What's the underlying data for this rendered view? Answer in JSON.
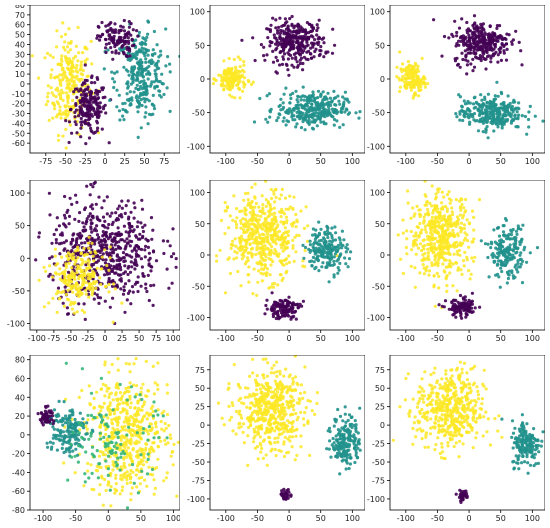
{
  "colors": {
    "purple": "#440154",
    "teal": "#21918c",
    "yellow": "#fde725",
    "green": "#35b779"
  },
  "chart_data": [
    {
      "type": "scatter",
      "row": 0,
      "col": 0,
      "xlim": [
        -95,
        95
      ],
      "ylim": [
        -70,
        80
      ],
      "xticks": [
        -75,
        -50,
        -25,
        0,
        25,
        50,
        75
      ],
      "yticks": [
        -60,
        -50,
        -40,
        -30,
        -20,
        -10,
        0,
        10,
        20,
        30,
        40,
        50,
        60,
        70,
        80
      ],
      "clusters": [
        {
          "color": "yellow",
          "cx": -45,
          "cy": 0,
          "rx": 30,
          "ry": 55,
          "n": 260
        },
        {
          "color": "purple",
          "cx": -20,
          "cy": -25,
          "rx": 25,
          "ry": 30,
          "n": 200
        },
        {
          "color": "teal",
          "cx": 45,
          "cy": 10,
          "rx": 35,
          "ry": 50,
          "n": 300
        },
        {
          "color": "purple",
          "cx": 15,
          "cy": 45,
          "rx": 25,
          "ry": 20,
          "n": 120
        }
      ]
    },
    {
      "type": "scatter",
      "row": 0,
      "col": 1,
      "xlim": [
        -125,
        120
      ],
      "ylim": [
        -110,
        110
      ],
      "xticks": [
        -100,
        -50,
        0,
        50,
        100
      ],
      "yticks": [
        -100,
        -50,
        0,
        50,
        100
      ],
      "clusters": [
        {
          "color": "purple",
          "cx": 10,
          "cy": 55,
          "rx": 50,
          "ry": 35,
          "n": 320
        },
        {
          "color": "yellow",
          "cx": -90,
          "cy": 0,
          "rx": 25,
          "ry": 25,
          "n": 160
        },
        {
          "color": "teal",
          "cx": 35,
          "cy": -45,
          "rx": 60,
          "ry": 28,
          "n": 320
        }
      ]
    },
    {
      "type": "scatter",
      "row": 0,
      "col": 2,
      "xlim": [
        -125,
        120
      ],
      "ylim": [
        -110,
        110
      ],
      "xticks": [
        -100,
        -50,
        0,
        50,
        100
      ],
      "yticks": [
        -100,
        -50,
        0,
        50,
        100
      ],
      "clusters": [
        {
          "color": "purple",
          "cx": 20,
          "cy": 55,
          "rx": 50,
          "ry": 35,
          "n": 300
        },
        {
          "color": "yellow",
          "cx": -90,
          "cy": 0,
          "rx": 22,
          "ry": 25,
          "n": 150
        },
        {
          "color": "teal",
          "cx": 35,
          "cy": -50,
          "rx": 55,
          "ry": 28,
          "n": 300
        }
      ]
    },
    {
      "type": "scatter",
      "row": 1,
      "col": 0,
      "xlim": [
        -110,
        110
      ],
      "ylim": [
        -110,
        120
      ],
      "xticks": [
        -100,
        -75,
        -50,
        -25,
        0,
        25,
        50,
        75,
        100
      ],
      "yticks": [
        -100,
        -50,
        0,
        50,
        100
      ],
      "clusters": [
        {
          "color": "purple",
          "cx": 0,
          "cy": 10,
          "rx": 90,
          "ry": 90,
          "n": 600
        },
        {
          "color": "yellow",
          "cx": -40,
          "cy": -30,
          "rx": 45,
          "ry": 50,
          "n": 240
        }
      ]
    },
    {
      "type": "scatter",
      "row": 1,
      "col": 1,
      "xlim": [
        -125,
        120
      ],
      "ylim": [
        -120,
        120
      ],
      "xticks": [
        -100,
        -50,
        0,
        50,
        100
      ],
      "yticks": [
        -100,
        -50,
        0,
        50,
        100
      ],
      "clusters": [
        {
          "color": "yellow",
          "cx": -40,
          "cy": 30,
          "rx": 60,
          "ry": 75,
          "n": 500
        },
        {
          "color": "teal",
          "cx": 60,
          "cy": 10,
          "rx": 35,
          "ry": 40,
          "n": 200
        },
        {
          "color": "purple",
          "cx": -10,
          "cy": -85,
          "rx": 30,
          "ry": 18,
          "n": 120
        }
      ]
    },
    {
      "type": "scatter",
      "row": 1,
      "col": 2,
      "xlim": [
        -125,
        120
      ],
      "ylim": [
        -120,
        120
      ],
      "xticks": [
        -100,
        -50,
        0,
        50,
        100
      ],
      "yticks": [
        -100,
        -50,
        0,
        50,
        100
      ],
      "clusters": [
        {
          "color": "yellow",
          "cx": -45,
          "cy": 30,
          "rx": 55,
          "ry": 75,
          "n": 480
        },
        {
          "color": "teal",
          "cx": 60,
          "cy": 5,
          "rx": 30,
          "ry": 45,
          "n": 190
        },
        {
          "color": "purple",
          "cx": -10,
          "cy": -85,
          "rx": 28,
          "ry": 16,
          "n": 110
        }
      ]
    },
    {
      "type": "scatter",
      "row": 2,
      "col": 0,
      "xlim": [
        -120,
        110
      ],
      "ylim": [
        -80,
        85
      ],
      "xticks": [
        -100,
        -50,
        0,
        50,
        100
      ],
      "yticks": [
        -80,
        -60,
        -40,
        -20,
        0,
        20,
        40,
        60,
        80
      ],
      "clusters": [
        {
          "color": "yellow",
          "cx": 30,
          "cy": 0,
          "rx": 70,
          "ry": 70,
          "n": 550
        },
        {
          "color": "teal",
          "cx": -65,
          "cy": 5,
          "rx": 35,
          "ry": 30,
          "n": 160
        },
        {
          "color": "green",
          "cx": 10,
          "cy": -10,
          "rx": 70,
          "ry": 60,
          "n": 120
        },
        {
          "color": "purple",
          "cx": -95,
          "cy": 20,
          "rx": 12,
          "ry": 10,
          "n": 50
        }
      ]
    },
    {
      "type": "scatter",
      "row": 2,
      "col": 1,
      "xlim": [
        -125,
        120
      ],
      "ylim": [
        -115,
        95
      ],
      "xticks": [
        -100,
        -50,
        0,
        50,
        100
      ],
      "yticks": [
        -100,
        -75,
        -50,
        -25,
        0,
        25,
        50,
        75
      ],
      "clusters": [
        {
          "color": "yellow",
          "cx": -30,
          "cy": 20,
          "rx": 60,
          "ry": 60,
          "n": 500
        },
        {
          "color": "teal",
          "cx": 90,
          "cy": -20,
          "rx": 25,
          "ry": 40,
          "n": 180
        },
        {
          "color": "purple",
          "cx": -5,
          "cy": -95,
          "rx": 10,
          "ry": 8,
          "n": 30
        }
      ]
    },
    {
      "type": "scatter",
      "row": 2,
      "col": 2,
      "xlim": [
        -125,
        120
      ],
      "ylim": [
        -115,
        95
      ],
      "xticks": [
        -100,
        -50,
        0,
        50,
        100
      ],
      "yticks": [
        -100,
        -75,
        -50,
        -25,
        0,
        25,
        50,
        75
      ],
      "clusters": [
        {
          "color": "yellow",
          "cx": -30,
          "cy": 20,
          "rx": 60,
          "ry": 60,
          "n": 480
        },
        {
          "color": "teal",
          "cx": 90,
          "cy": -25,
          "rx": 25,
          "ry": 35,
          "n": 170
        },
        {
          "color": "purple",
          "cx": -10,
          "cy": -95,
          "rx": 10,
          "ry": 8,
          "n": 30
        }
      ]
    }
  ]
}
